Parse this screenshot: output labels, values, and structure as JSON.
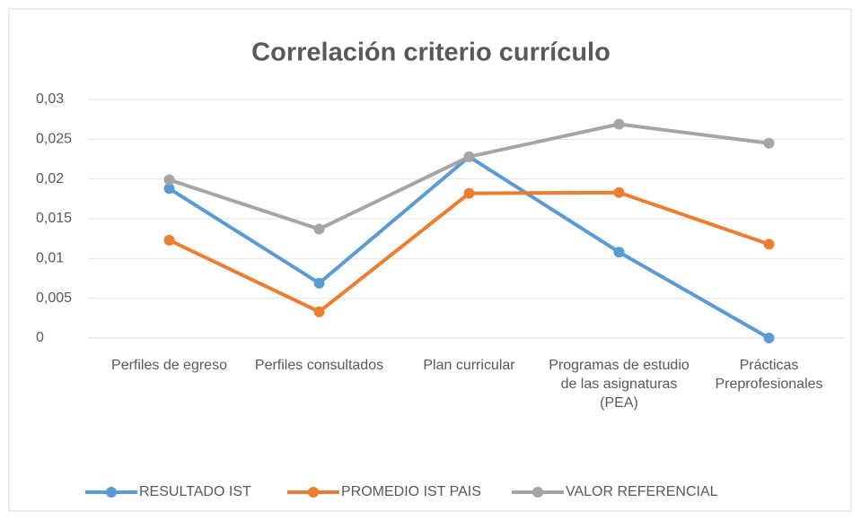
{
  "chart_data": {
    "type": "line",
    "title": "Correlación criterio currículo",
    "categories": [
      "Perfiles de egreso",
      "Perfiles consultados",
      "Plan curricular",
      "Programas de estudio de las asignaturas (PEA)",
      "Prácticas Preprofesionales"
    ],
    "series": [
      {
        "name": "RESULTADO IST",
        "color": "#5b9bd5",
        "values": [
          0.0188,
          0.0069,
          0.0228,
          0.0108,
          0
        ]
      },
      {
        "name": "PROMEDIO IST PAIS",
        "color": "#ed7d31",
        "values": [
          0.0123,
          0.0033,
          0.0182,
          0.0183,
          0.0118
        ]
      },
      {
        "name": "VALOR REFERENCIAL",
        "color": "#a5a5a5",
        "values": [
          0.0199,
          0.0137,
          0.0228,
          0.0269,
          0.0245
        ]
      }
    ],
    "ylim": [
      0,
      0.03
    ],
    "yticks": [
      0,
      {
        "value": 0.005,
        "label": "0,005"
      },
      {
        "value": 0.01,
        "label": "0,01"
      },
      {
        "value": 0.015,
        "label": "0,015"
      },
      {
        "value": 0.02,
        "label": "0,02"
      },
      {
        "value": 0.025,
        "label": "0,025"
      },
      {
        "value": 0.03,
        "label": "0,03"
      }
    ],
    "grid": true,
    "legend": "bottom"
  }
}
